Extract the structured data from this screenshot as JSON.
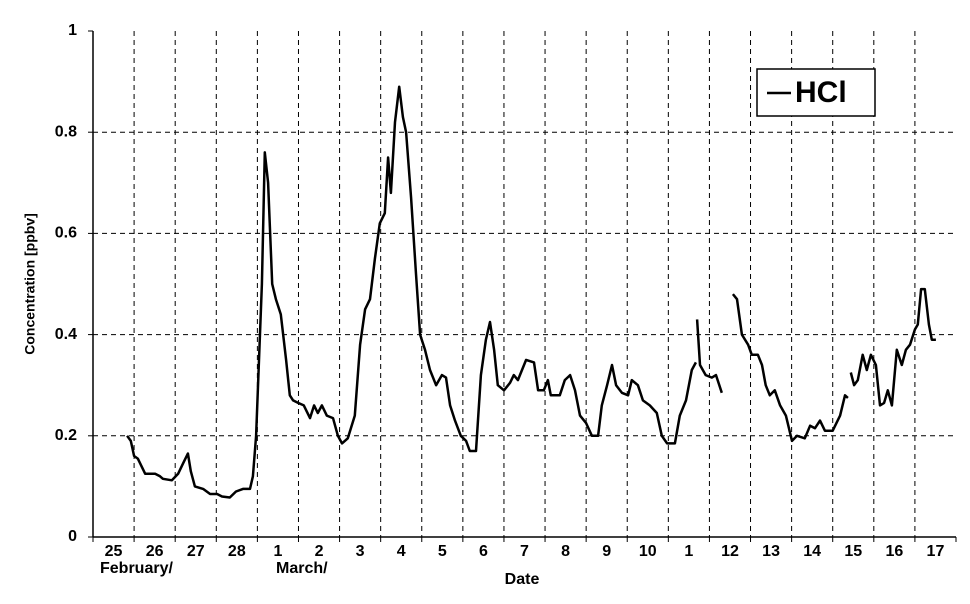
{
  "chart_data": {
    "type": "line",
    "y_label": "Concentration [ppbv]",
    "x_label": "Date",
    "annotations": [
      "February/",
      "March/"
    ],
    "day_labels": [
      "25",
      "26",
      "27",
      "28",
      "1",
      "2",
      "3",
      "4",
      "5",
      "6",
      "7",
      "8",
      "9",
      "10",
      "1",
      "12",
      "13",
      "14",
      "15",
      "16",
      "17"
    ],
    "xlim": [
      0,
      21
    ],
    "xticks": [
      0,
      1,
      2,
      3,
      4,
      5,
      6,
      7,
      8,
      9,
      10,
      11,
      12,
      13,
      14,
      15,
      16,
      17,
      18,
      19,
      20,
      21
    ],
    "ylim": [
      0,
      1
    ],
    "yticks": [
      0,
      0.2,
      0.4,
      0.6,
      0.8,
      1
    ],
    "grid": true,
    "legend": "upper right",
    "series": [
      {
        "name": "HCl",
        "color": "#000000",
        "x": [
          0.83,
          0.92,
          1.0,
          1.09,
          1.27,
          1.39,
          1.51,
          1.63,
          1.7,
          1.92,
          2.07,
          2.19,
          2.31,
          2.38,
          2.48,
          2.68,
          2.85,
          3.02,
          3.14,
          3.33,
          3.48,
          3.65,
          3.82,
          3.89,
          3.97,
          4.04,
          4.11,
          4.18,
          4.26,
          4.36,
          4.45,
          4.57,
          4.7,
          4.79,
          4.87,
          4.99,
          5.13,
          5.28,
          5.38,
          5.47,
          5.57,
          5.69,
          5.84,
          5.96,
          6.06,
          6.2,
          6.37,
          6.5,
          6.62,
          6.74,
          6.86,
          6.98,
          7.1,
          7.18,
          7.25,
          7.35,
          7.45,
          7.54,
          7.62,
          7.74,
          7.86,
          7.96,
          8.08,
          8.2,
          8.35,
          8.49,
          8.59,
          8.69,
          8.81,
          8.95,
          9.08,
          9.17,
          9.32,
          9.44,
          9.56,
          9.66,
          9.76,
          9.85,
          10.0,
          10.15,
          10.24,
          10.34,
          10.44,
          10.54,
          10.73,
          10.83,
          10.97,
          11.07,
          11.14,
          11.36,
          11.48,
          11.61,
          11.73,
          11.85,
          12.0,
          12.14,
          12.29,
          12.38,
          12.51,
          12.63,
          12.73,
          12.87,
          13.02,
          13.11,
          13.26,
          13.38,
          13.55,
          13.72,
          13.84,
          13.97,
          14.16,
          14.28,
          14.43,
          14.57,
          14.67,
          null,
          14.7,
          14.77,
          14.91,
          15.06,
          15.16,
          15.3,
          null,
          15.57,
          15.67,
          15.79,
          15.94,
          16.03,
          16.18,
          16.28,
          16.37,
          16.47,
          16.59,
          16.72,
          16.86,
          17.01,
          17.13,
          17.32,
          17.45,
          17.57,
          17.69,
          17.81,
          18.0,
          18.18,
          18.3,
          18.37,
          null,
          18.44,
          18.52,
          18.61,
          18.73,
          18.83,
          18.93,
          19.05,
          19.15,
          19.25,
          19.34,
          19.44,
          19.56,
          19.68,
          19.78,
          19.88,
          20.0,
          20.07,
          20.15,
          20.24,
          20.34,
          20.41,
          20.51
        ],
        "values": [
          0.2,
          0.19,
          0.16,
          0.155,
          0.125,
          0.125,
          0.125,
          0.12,
          0.115,
          0.112,
          0.125,
          0.145,
          0.165,
          0.13,
          0.1,
          0.095,
          0.085,
          0.085,
          0.08,
          0.078,
          0.09,
          0.095,
          0.095,
          0.12,
          0.2,
          0.35,
          0.5,
          0.76,
          0.7,
          0.5,
          0.47,
          0.44,
          0.35,
          0.28,
          0.27,
          0.265,
          0.26,
          0.235,
          0.26,
          0.245,
          0.26,
          0.24,
          0.235,
          0.2,
          0.185,
          0.195,
          0.24,
          0.38,
          0.45,
          0.47,
          0.55,
          0.62,
          0.64,
          0.75,
          0.68,
          0.82,
          0.89,
          0.83,
          0.8,
          0.67,
          0.52,
          0.4,
          0.37,
          0.33,
          0.3,
          0.32,
          0.315,
          0.26,
          0.23,
          0.2,
          0.19,
          0.17,
          0.17,
          0.32,
          0.39,
          0.425,
          0.37,
          0.3,
          0.29,
          0.305,
          0.32,
          0.31,
          0.33,
          0.35,
          0.345,
          0.29,
          0.29,
          0.31,
          0.28,
          0.28,
          0.31,
          0.32,
          0.29,
          0.24,
          0.225,
          0.2,
          0.2,
          0.26,
          0.3,
          0.34,
          0.3,
          0.285,
          0.28,
          0.31,
          0.3,
          0.27,
          0.26,
          0.245,
          0.2,
          0.185,
          0.185,
          0.24,
          0.27,
          0.33,
          0.345,
          null,
          0.43,
          0.34,
          0.32,
          0.315,
          0.32,
          0.285,
          null,
          0.48,
          0.47,
          0.4,
          0.38,
          0.36,
          0.36,
          0.34,
          0.3,
          0.28,
          0.29,
          0.26,
          0.24,
          0.19,
          0.2,
          0.195,
          0.22,
          0.215,
          0.23,
          0.21,
          0.21,
          0.24,
          0.28,
          0.275,
          null,
          0.325,
          0.3,
          0.31,
          0.36,
          0.33,
          0.36,
          0.34,
          0.26,
          0.265,
          0.29,
          0.26,
          0.37,
          0.34,
          0.37,
          0.38,
          0.41,
          0.42,
          0.49,
          0.49,
          0.42,
          0.39,
          0.39
        ]
      }
    ]
  }
}
